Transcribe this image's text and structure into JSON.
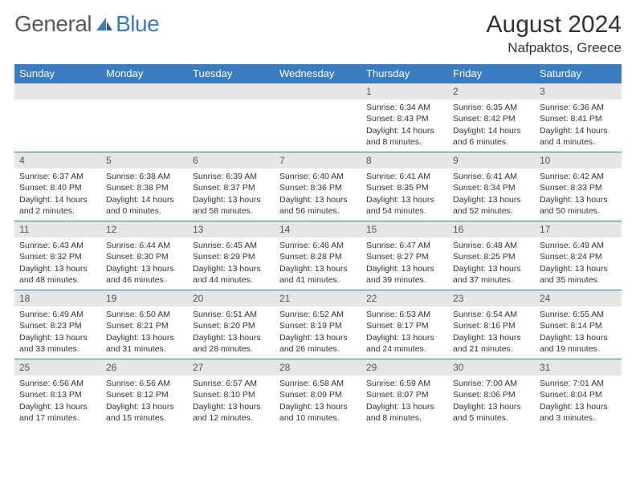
{
  "logo": {
    "general": "General",
    "blue": "Blue"
  },
  "title": {
    "month": "August 2024",
    "location": "Nafpaktos, Greece"
  },
  "colors": {
    "header_bg": "#3b7bbf",
    "header_text": "#ffffff",
    "daynum_bg": "#e6e6e6",
    "daynum_text": "#555555",
    "body_text": "#333333",
    "border": "#3b7bbf",
    "logo_gray": "#5a5a5a",
    "logo_blue": "#3b7bbf",
    "page_bg": "#ffffff"
  },
  "day_headers": [
    "Sunday",
    "Monday",
    "Tuesday",
    "Wednesday",
    "Thursday",
    "Friday",
    "Saturday"
  ],
  "weeks": [
    [
      {
        "day": "",
        "sunrise": "",
        "sunset": "",
        "daylight": ""
      },
      {
        "day": "",
        "sunrise": "",
        "sunset": "",
        "daylight": ""
      },
      {
        "day": "",
        "sunrise": "",
        "sunset": "",
        "daylight": ""
      },
      {
        "day": "",
        "sunrise": "",
        "sunset": "",
        "daylight": ""
      },
      {
        "day": "1",
        "sunrise": "Sunrise: 6:34 AM",
        "sunset": "Sunset: 8:43 PM",
        "daylight": "Daylight: 14 hours and 8 minutes."
      },
      {
        "day": "2",
        "sunrise": "Sunrise: 6:35 AM",
        "sunset": "Sunset: 8:42 PM",
        "daylight": "Daylight: 14 hours and 6 minutes."
      },
      {
        "day": "3",
        "sunrise": "Sunrise: 6:36 AM",
        "sunset": "Sunset: 8:41 PM",
        "daylight": "Daylight: 14 hours and 4 minutes."
      }
    ],
    [
      {
        "day": "4",
        "sunrise": "Sunrise: 6:37 AM",
        "sunset": "Sunset: 8:40 PM",
        "daylight": "Daylight: 14 hours and 2 minutes."
      },
      {
        "day": "5",
        "sunrise": "Sunrise: 6:38 AM",
        "sunset": "Sunset: 8:38 PM",
        "daylight": "Daylight: 14 hours and 0 minutes."
      },
      {
        "day": "6",
        "sunrise": "Sunrise: 6:39 AM",
        "sunset": "Sunset: 8:37 PM",
        "daylight": "Daylight: 13 hours and 58 minutes."
      },
      {
        "day": "7",
        "sunrise": "Sunrise: 6:40 AM",
        "sunset": "Sunset: 8:36 PM",
        "daylight": "Daylight: 13 hours and 56 minutes."
      },
      {
        "day": "8",
        "sunrise": "Sunrise: 6:41 AM",
        "sunset": "Sunset: 8:35 PM",
        "daylight": "Daylight: 13 hours and 54 minutes."
      },
      {
        "day": "9",
        "sunrise": "Sunrise: 6:41 AM",
        "sunset": "Sunset: 8:34 PM",
        "daylight": "Daylight: 13 hours and 52 minutes."
      },
      {
        "day": "10",
        "sunrise": "Sunrise: 6:42 AM",
        "sunset": "Sunset: 8:33 PM",
        "daylight": "Daylight: 13 hours and 50 minutes."
      }
    ],
    [
      {
        "day": "11",
        "sunrise": "Sunrise: 6:43 AM",
        "sunset": "Sunset: 8:32 PM",
        "daylight": "Daylight: 13 hours and 48 minutes."
      },
      {
        "day": "12",
        "sunrise": "Sunrise: 6:44 AM",
        "sunset": "Sunset: 8:30 PM",
        "daylight": "Daylight: 13 hours and 46 minutes."
      },
      {
        "day": "13",
        "sunrise": "Sunrise: 6:45 AM",
        "sunset": "Sunset: 8:29 PM",
        "daylight": "Daylight: 13 hours and 44 minutes."
      },
      {
        "day": "14",
        "sunrise": "Sunrise: 6:46 AM",
        "sunset": "Sunset: 8:28 PM",
        "daylight": "Daylight: 13 hours and 41 minutes."
      },
      {
        "day": "15",
        "sunrise": "Sunrise: 6:47 AM",
        "sunset": "Sunset: 8:27 PM",
        "daylight": "Daylight: 13 hours and 39 minutes."
      },
      {
        "day": "16",
        "sunrise": "Sunrise: 6:48 AM",
        "sunset": "Sunset: 8:25 PM",
        "daylight": "Daylight: 13 hours and 37 minutes."
      },
      {
        "day": "17",
        "sunrise": "Sunrise: 6:49 AM",
        "sunset": "Sunset: 8:24 PM",
        "daylight": "Daylight: 13 hours and 35 minutes."
      }
    ],
    [
      {
        "day": "18",
        "sunrise": "Sunrise: 6:49 AM",
        "sunset": "Sunset: 8:23 PM",
        "daylight": "Daylight: 13 hours and 33 minutes."
      },
      {
        "day": "19",
        "sunrise": "Sunrise: 6:50 AM",
        "sunset": "Sunset: 8:21 PM",
        "daylight": "Daylight: 13 hours and 31 minutes."
      },
      {
        "day": "20",
        "sunrise": "Sunrise: 6:51 AM",
        "sunset": "Sunset: 8:20 PM",
        "daylight": "Daylight: 13 hours and 28 minutes."
      },
      {
        "day": "21",
        "sunrise": "Sunrise: 6:52 AM",
        "sunset": "Sunset: 8:19 PM",
        "daylight": "Daylight: 13 hours and 26 minutes."
      },
      {
        "day": "22",
        "sunrise": "Sunrise: 6:53 AM",
        "sunset": "Sunset: 8:17 PM",
        "daylight": "Daylight: 13 hours and 24 minutes."
      },
      {
        "day": "23",
        "sunrise": "Sunrise: 6:54 AM",
        "sunset": "Sunset: 8:16 PM",
        "daylight": "Daylight: 13 hours and 21 minutes."
      },
      {
        "day": "24",
        "sunrise": "Sunrise: 6:55 AM",
        "sunset": "Sunset: 8:14 PM",
        "daylight": "Daylight: 13 hours and 19 minutes."
      }
    ],
    [
      {
        "day": "25",
        "sunrise": "Sunrise: 6:56 AM",
        "sunset": "Sunset: 8:13 PM",
        "daylight": "Daylight: 13 hours and 17 minutes."
      },
      {
        "day": "26",
        "sunrise": "Sunrise: 6:56 AM",
        "sunset": "Sunset: 8:12 PM",
        "daylight": "Daylight: 13 hours and 15 minutes."
      },
      {
        "day": "27",
        "sunrise": "Sunrise: 6:57 AM",
        "sunset": "Sunset: 8:10 PM",
        "daylight": "Daylight: 13 hours and 12 minutes."
      },
      {
        "day": "28",
        "sunrise": "Sunrise: 6:58 AM",
        "sunset": "Sunset: 8:09 PM",
        "daylight": "Daylight: 13 hours and 10 minutes."
      },
      {
        "day": "29",
        "sunrise": "Sunrise: 6:59 AM",
        "sunset": "Sunset: 8:07 PM",
        "daylight": "Daylight: 13 hours and 8 minutes."
      },
      {
        "day": "30",
        "sunrise": "Sunrise: 7:00 AM",
        "sunset": "Sunset: 8:06 PM",
        "daylight": "Daylight: 13 hours and 5 minutes."
      },
      {
        "day": "31",
        "sunrise": "Sunrise: 7:01 AM",
        "sunset": "Sunset: 8:04 PM",
        "daylight": "Daylight: 13 hours and 3 minutes."
      }
    ]
  ]
}
